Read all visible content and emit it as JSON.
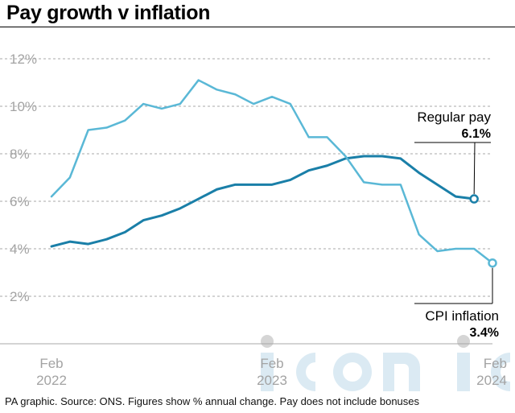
{
  "title": "Pay growth v inflation",
  "footer": "PA graphic. Source: ONS. Figures show % annual change. Pay does not include bonuses",
  "colors": {
    "regular_pay": "#1a7fa8",
    "cpi_inflation": "#5ab8d6",
    "grid": "#a8a8a8",
    "tick_text": "#a3a3a3"
  },
  "chart_data": {
    "type": "line",
    "x_labels": [
      {
        "index": 0,
        "line1": "Feb",
        "line2": "2022"
      },
      {
        "index": 12,
        "line1": "Feb",
        "line2": "2023"
      },
      {
        "index": 24,
        "line1": "Feb",
        "line2": "2024"
      }
    ],
    "y_ticks": [
      2,
      4,
      6,
      8,
      10,
      12
    ],
    "y_tick_labels": [
      "2%",
      "4%",
      "6%",
      "8%",
      "10%",
      "12%"
    ],
    "ylim": [
      0,
      12
    ],
    "grid": true,
    "series": [
      {
        "name": "Regular pay",
        "key": "regular_pay",
        "values": [
          4.1,
          4.3,
          4.2,
          4.4,
          4.7,
          5.2,
          5.4,
          5.7,
          6.1,
          6.5,
          6.7,
          6.7,
          6.7,
          6.9,
          7.3,
          7.5,
          7.8,
          7.9,
          7.9,
          7.8,
          7.2,
          6.7,
          6.2,
          6.1
        ],
        "end_label": "6.1%"
      },
      {
        "name": "CPI inflation",
        "key": "cpi_inflation",
        "values": [
          6.2,
          7.0,
          9.0,
          9.1,
          9.4,
          10.1,
          9.9,
          10.1,
          11.1,
          10.7,
          10.5,
          10.1,
          10.4,
          10.1,
          8.7,
          8.7,
          7.9,
          6.8,
          6.7,
          6.7,
          4.6,
          3.9,
          4.0,
          4.0,
          3.4
        ],
        "end_label": "3.4%"
      }
    ]
  }
}
